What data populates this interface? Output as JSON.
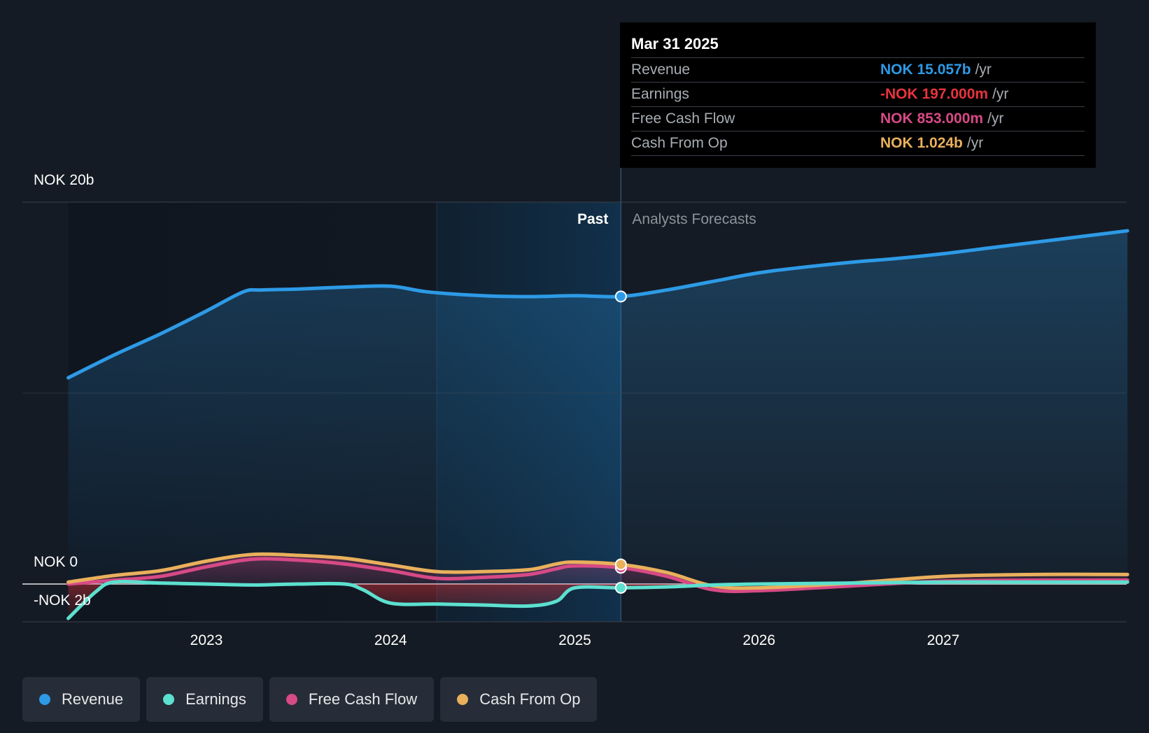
{
  "tooltip": {
    "date": "Mar 31 2025",
    "rows": [
      {
        "name": "Revenue",
        "value": "NOK 15.057b",
        "unit": "/yr",
        "color": "#2d9ae6"
      },
      {
        "name": "Earnings",
        "value": "-NOK 197.000m",
        "unit": "/yr",
        "color": "#e8343c"
      },
      {
        "name": "Free Cash Flow",
        "value": "NOK 853.000m",
        "unit": "/yr",
        "color": "#d64a86"
      },
      {
        "name": "Cash From Op",
        "value": "NOK 1.024b",
        "unit": "/yr",
        "color": "#e9b05c"
      }
    ]
  },
  "legend": [
    {
      "label": "Revenue",
      "color": "#2d9ae6"
    },
    {
      "label": "Earnings",
      "color": "#5ce0cf"
    },
    {
      "label": "Free Cash Flow",
      "color": "#d64a86"
    },
    {
      "label": "Cash From Op",
      "color": "#e9b05c"
    }
  ],
  "chart_data": {
    "type": "line",
    "y_tick_labels": [
      "NOK 20b",
      "NOK 0",
      "-NOK 2b"
    ],
    "y_ticks": [
      20,
      0,
      -2
    ],
    "ylim": [
      -2,
      20
    ],
    "x_tick_labels": [
      "2023",
      "2024",
      "2025",
      "2026",
      "2027"
    ],
    "x_ticks": [
      2023,
      2024,
      2025,
      2026,
      2027
    ],
    "xlim": [
      2022.0,
      2028.0
    ],
    "past_label": "Past",
    "forecast_label": "Analysts Forecasts",
    "divider_x": 2025.25,
    "highlight_start_x": 2024.25,
    "series": [
      {
        "name": "Revenue",
        "color": "#2d9ae6",
        "x": [
          2022.25,
          2022.5,
          2022.75,
          2023.0,
          2023.2,
          2023.3,
          2023.5,
          2023.75,
          2024.0,
          2024.2,
          2024.5,
          2024.75,
          2025.0,
          2025.25,
          2025.5,
          2025.75,
          2026.0,
          2026.25,
          2026.5,
          2026.75,
          2027.0,
          2027.25,
          2027.5,
          2027.75,
          2028.0
        ],
        "y": [
          10.8,
          12.0,
          13.1,
          14.3,
          15.3,
          15.4,
          15.45,
          15.55,
          15.6,
          15.3,
          15.1,
          15.05,
          15.1,
          15.06,
          15.4,
          15.85,
          16.3,
          16.6,
          16.85,
          17.05,
          17.3,
          17.6,
          17.9,
          18.2,
          18.5
        ]
      },
      {
        "name": "Earnings",
        "color": "#5ce0cf",
        "x": [
          2022.25,
          2022.4,
          2022.5,
          2022.75,
          2023.0,
          2023.25,
          2023.5,
          2023.75,
          2023.85,
          2024.0,
          2024.25,
          2024.5,
          2024.75,
          2024.9,
          2025.0,
          2025.25,
          2025.5,
          2025.75,
          2026.0,
          2026.5,
          2027.0,
          2027.5,
          2028.0
        ],
        "y": [
          -1.8,
          -0.4,
          0.1,
          0.05,
          0.0,
          -0.05,
          0.0,
          0.0,
          -0.3,
          -1.0,
          -1.05,
          -1.1,
          -1.15,
          -0.9,
          -0.2,
          -0.197,
          -0.15,
          -0.05,
          0.0,
          0.05,
          0.1,
          0.1,
          0.1
        ]
      },
      {
        "name": "Free Cash Flow",
        "color": "#d64a86",
        "x": [
          2022.25,
          2022.5,
          2022.75,
          2023.0,
          2023.25,
          2023.5,
          2023.75,
          2024.0,
          2024.25,
          2024.5,
          2024.75,
          2024.9,
          2025.0,
          2025.25,
          2025.5,
          2025.75,
          2026.0,
          2026.5,
          2027.0,
          2027.5,
          2028.0
        ],
        "y": [
          0.0,
          0.2,
          0.4,
          0.9,
          1.3,
          1.25,
          1.05,
          0.7,
          0.3,
          0.35,
          0.5,
          0.8,
          0.95,
          0.853,
          0.4,
          -0.3,
          -0.35,
          -0.1,
          0.15,
          0.2,
          0.2
        ]
      },
      {
        "name": "Cash From Op",
        "color": "#e9b05c",
        "x": [
          2022.25,
          2022.5,
          2022.75,
          2023.0,
          2023.25,
          2023.5,
          2023.75,
          2024.0,
          2024.25,
          2024.5,
          2024.75,
          2024.9,
          2025.0,
          2025.25,
          2025.5,
          2025.75,
          2026.0,
          2026.5,
          2027.0,
          2027.5,
          2028.0
        ],
        "y": [
          0.1,
          0.45,
          0.7,
          1.2,
          1.55,
          1.5,
          1.35,
          1.0,
          0.65,
          0.65,
          0.75,
          1.05,
          1.15,
          1.024,
          0.6,
          -0.1,
          -0.2,
          0.05,
          0.4,
          0.5,
          0.5
        ]
      }
    ]
  }
}
